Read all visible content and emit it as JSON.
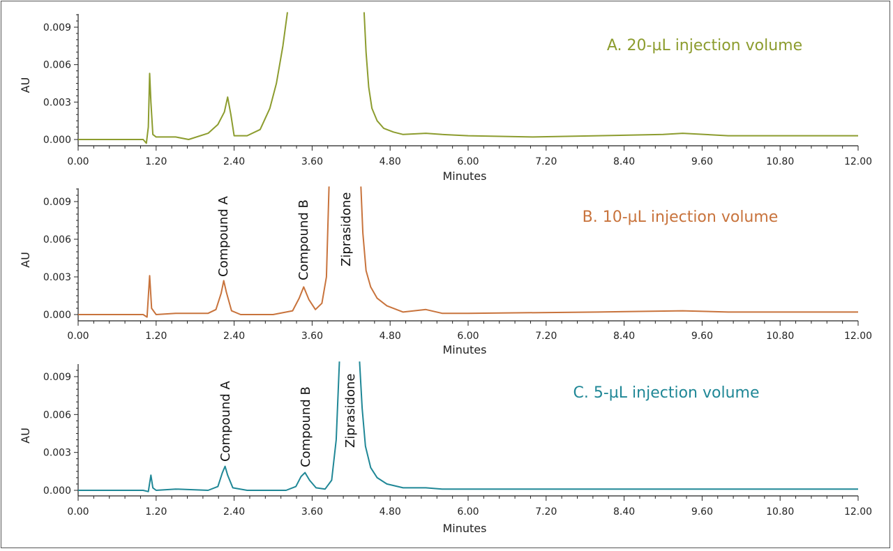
{
  "chart_data": [
    {
      "type": "line",
      "title": "A. 20-µL injection volume",
      "xlabel": "Minutes",
      "ylabel": "AU",
      "xlim": [
        0,
        12
      ],
      "ylim": [
        0,
        0.0102
      ],
      "xticks": [
        "0.00",
        "1.20",
        "2.40",
        "3.60",
        "4.80",
        "6.00",
        "7.20",
        "8.40",
        "9.60",
        "10.80",
        "12.00"
      ],
      "yticks": [
        "0.000",
        "0.003",
        "0.006",
        "0.009"
      ],
      "color": "#8c9c2e",
      "annotations": [],
      "x": [
        0,
        0.5,
        1.0,
        1.05,
        1.08,
        1.1,
        1.12,
        1.15,
        1.2,
        1.5,
        1.7,
        2.0,
        2.15,
        2.25,
        2.3,
        2.35,
        2.4,
        2.6,
        2.8,
        2.95,
        3.05,
        3.15,
        3.22,
        null,
        4.4,
        4.43,
        4.47,
        4.52,
        4.6,
        4.7,
        4.85,
        5.0,
        5.35,
        5.6,
        6.0,
        7.0,
        8.0,
        9.0,
        9.3,
        10.0,
        11.0,
        12.0
      ],
      "y": [
        0,
        0,
        0,
        -0.0003,
        0.001,
        0.0053,
        0.003,
        0.0004,
        0.0002,
        0.0002,
        0.0,
        0.0005,
        0.0012,
        0.0022,
        0.0034,
        0.002,
        0.0003,
        0.0003,
        0.0008,
        0.0025,
        0.0045,
        0.0075,
        0.0102,
        null,
        0.0102,
        0.007,
        0.0042,
        0.0025,
        0.0015,
        0.0009,
        0.0006,
        0.0004,
        0.0005,
        0.0004,
        0.0003,
        0.0002,
        0.0003,
        0.0004,
        0.0005,
        0.0003,
        0.0003,
        0.0003
      ]
    },
    {
      "type": "line",
      "title": "B. 10-µL injection volume",
      "xlabel": "Minutes",
      "ylabel": "AU",
      "xlim": [
        0,
        12
      ],
      "ylim": [
        0,
        0.0102
      ],
      "xticks": [
        "0.00",
        "1.20",
        "2.40",
        "3.60",
        "4.80",
        "6.00",
        "7.20",
        "8.40",
        "9.60",
        "10.80",
        "12.00"
      ],
      "yticks": [
        "0.000",
        "0.003",
        "0.006",
        "0.009"
      ],
      "color": "#c8733c",
      "annotations": [
        "Compound A",
        "Compound B",
        "Ziprasidone"
      ],
      "x": [
        0,
        0.5,
        1.0,
        1.06,
        1.1,
        1.13,
        1.2,
        1.5,
        2.0,
        2.12,
        2.2,
        2.24,
        2.28,
        2.36,
        2.5,
        3.0,
        3.3,
        3.4,
        3.47,
        3.55,
        3.65,
        3.75,
        3.82,
        3.86,
        null,
        4.35,
        4.38,
        4.43,
        4.5,
        4.6,
        4.75,
        5.0,
        5.35,
        5.6,
        6.0,
        8.0,
        9.3,
        10.0,
        12.0
      ],
      "y": [
        0,
        0,
        0,
        -0.0002,
        0.0031,
        0.0005,
        0,
        0.0001,
        0.0001,
        0.0004,
        0.0017,
        0.0027,
        0.0018,
        0.0003,
        0,
        0,
        0.0003,
        0.0013,
        0.0022,
        0.0012,
        0.0004,
        0.0009,
        0.003,
        0.0102,
        null,
        0.0102,
        0.0065,
        0.0035,
        0.0022,
        0.0013,
        0.0007,
        0.0002,
        0.0004,
        0.0001,
        0.0001,
        0.0002,
        0.0003,
        0.0002,
        0.0002
      ]
    },
    {
      "type": "line",
      "title": "C. 5-µL injection volume",
      "xlabel": "Minutes",
      "ylabel": "AU",
      "xlim": [
        0,
        12
      ],
      "ylim": [
        0,
        0.0102
      ],
      "xticks": [
        "0.00",
        "1.20",
        "2.40",
        "3.60",
        "4.80",
        "6.00",
        "7.20",
        "8.40",
        "9.60",
        "10.80",
        "12.00"
      ],
      "yticks": [
        "0.000",
        "0.003",
        "0.006",
        "0.009"
      ],
      "color": "#1f8796",
      "annotations": [
        "Compound A",
        "Compound B",
        "Ziprasidone"
      ],
      "x": [
        0,
        0.5,
        1.0,
        1.08,
        1.12,
        1.15,
        1.2,
        1.5,
        2.0,
        2.15,
        2.22,
        2.26,
        2.3,
        2.38,
        2.6,
        3.2,
        3.35,
        3.43,
        3.49,
        3.56,
        3.66,
        3.8,
        3.9,
        3.97,
        4.02,
        null,
        4.33,
        4.37,
        4.42,
        4.5,
        4.6,
        4.75,
        5.0,
        5.35,
        5.6,
        7.2,
        9.3,
        12.0
      ],
      "y": [
        0,
        0,
        0,
        -0.0001,
        0.0012,
        0.0002,
        0,
        0.0001,
        0,
        0.0003,
        0.0014,
        0.0019,
        0.0012,
        0.0002,
        0,
        0,
        0.0003,
        0.0011,
        0.0014,
        0.0008,
        0.0002,
        0.0001,
        0.0008,
        0.004,
        0.0102,
        null,
        0.0102,
        0.0065,
        0.0035,
        0.0018,
        0.001,
        0.0005,
        0.0002,
        0.0002,
        0.0001,
        0.0001,
        0.0001,
        0.0001
      ]
    }
  ]
}
